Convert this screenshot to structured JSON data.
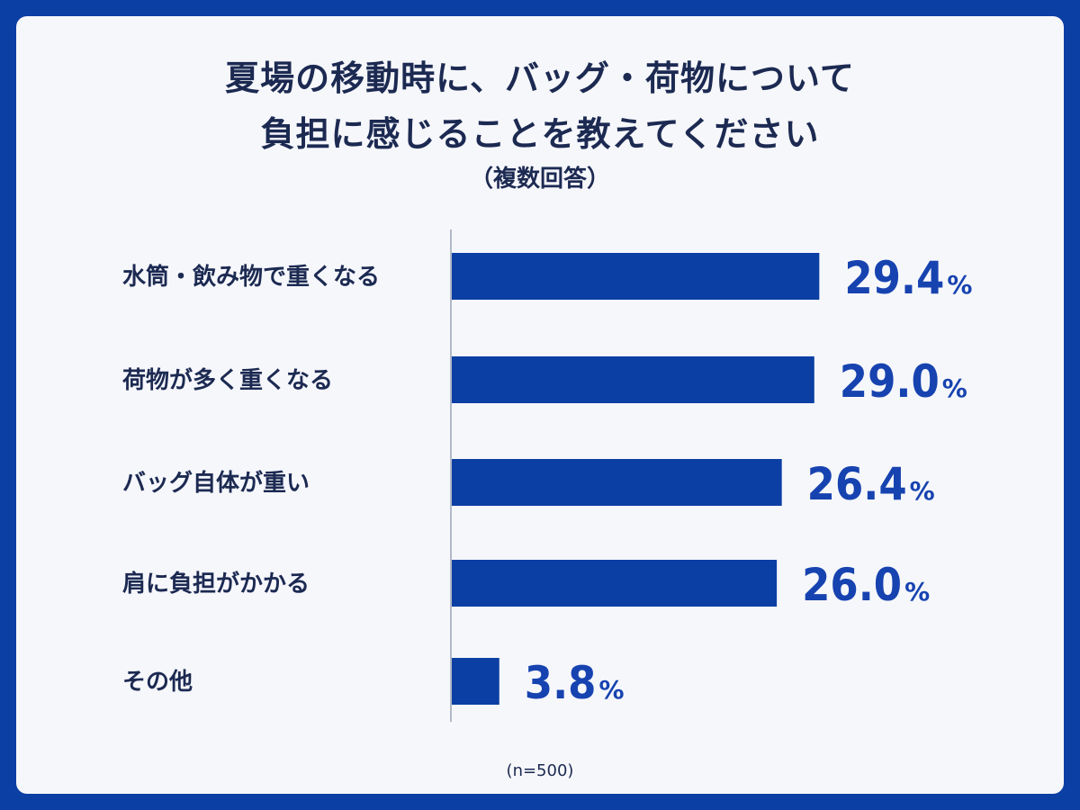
{
  "chart_data": {
    "type": "bar",
    "orientation": "horizontal",
    "title_lines": [
      "夏場の移動時に、バッグ・荷物について",
      "負担に感じることを教えてください"
    ],
    "subtitle": "（複数回答）",
    "categories": [
      "水筒・飲み物で重くなる",
      "荷物が多く重くなる",
      "バッグ自体が重い",
      "肩に負担がかかる",
      "その他"
    ],
    "values": [
      29.4,
      29.0,
      26.4,
      26.0,
      3.8
    ],
    "value_labels": [
      "29.4",
      "29.0",
      "26.4",
      "26.0",
      "3.8"
    ],
    "unit": "%",
    "xlim": [
      0,
      36
    ],
    "grid": false,
    "bar_color": "#0b3fa3",
    "label_color": "#1743b0",
    "note": "(n=500)"
  }
}
